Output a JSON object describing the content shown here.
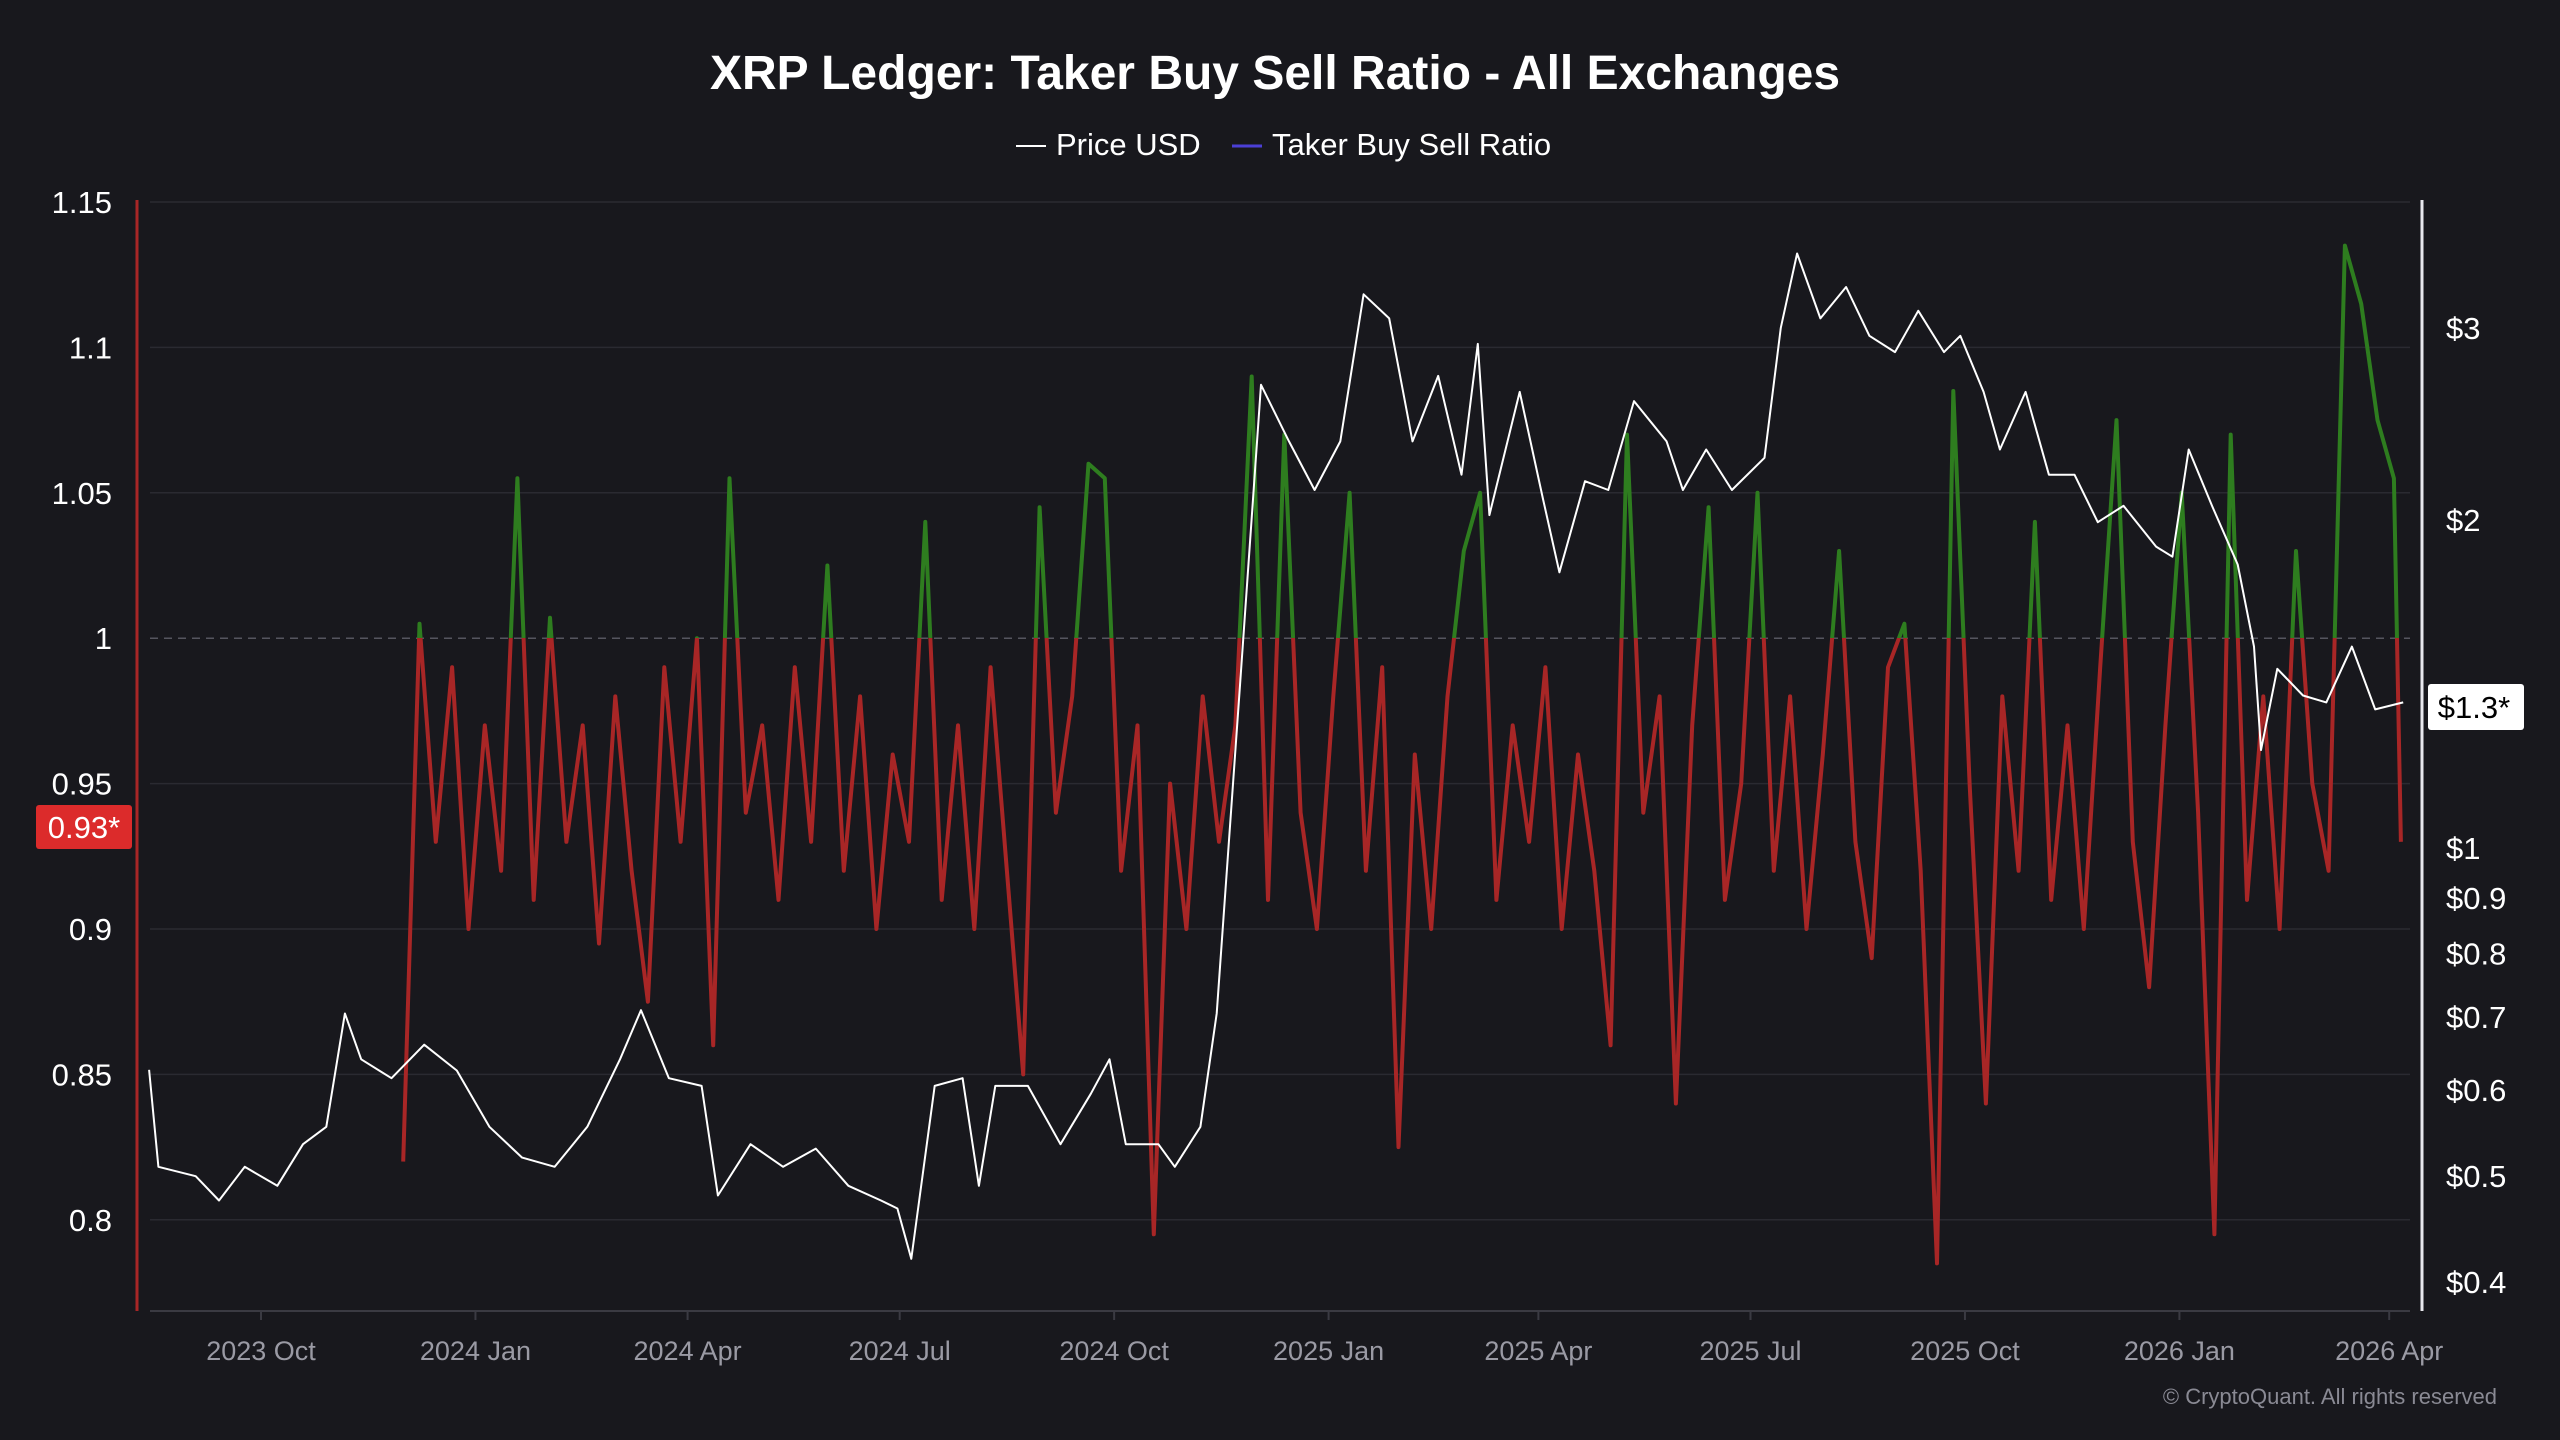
{
  "chart_data": {
    "type": "line",
    "title": "XRP Ledger: Taker Buy Sell Ratio - All Exchanges",
    "legend": [
      {
        "name": "Price USD",
        "color": "#ffffff"
      },
      {
        "name": "Taker Buy Sell Ratio",
        "color": "#4b3fd6"
      }
    ],
    "legend_placement": "top-center",
    "colors": {
      "above_1": "#2e7d1f",
      "below_1": "#a82626",
      "background": "#18181d",
      "price": "#ffffff"
    },
    "left_axis": {
      "ticks": [
        "1.15",
        "1.1",
        "1.05",
        "1",
        "0.95",
        "0.9",
        "0.85",
        "0.8"
      ],
      "tick_values": [
        1.15,
        1.1,
        1.05,
        1,
        0.95,
        0.9,
        0.85,
        0.8
      ],
      "range": [
        0.77,
        1.15
      ],
      "reference_line": 1,
      "current_label": "0.93*"
    },
    "right_axis": {
      "scale": "log",
      "ticks": [
        "$3",
        "$2",
        "$1",
        "$0.9",
        "$0.8",
        "$0.7",
        "$0.6",
        "$0.5",
        "$0.4"
      ],
      "tick_values": [
        3,
        2,
        1,
        0.9,
        0.8,
        0.7,
        0.6,
        0.5,
        0.4
      ],
      "current_label": "$1.3*"
    },
    "x_axis": {
      "ticks": [
        "2023 Oct",
        "2024 Jan",
        "2024 Apr",
        "2024 Jul",
        "2024 Oct",
        "2025 Jan",
        "2025 Apr",
        "2025 Jul",
        "2025 Oct",
        "2026 Jan",
        "2026 Apr"
      ],
      "tick_dates": [
        "2023-10-01",
        "2024-01-01",
        "2024-04-01",
        "2024-07-01",
        "2024-10-01",
        "2025-01-01",
        "2025-04-01",
        "2025-07-01",
        "2025-10-01",
        "2026-01-01",
        "2026-04-01"
      ],
      "range": [
        "2023-08-14",
        "2026-04-07"
      ]
    },
    "grid": true,
    "series": [
      {
        "name": "Price USD",
        "axis": "right",
        "points": [
          [
            "2023-08-14",
            0.626
          ],
          [
            "2023-08-18",
            0.51
          ],
          [
            "2023-09-03",
            0.5
          ],
          [
            "2023-09-13",
            0.475
          ],
          [
            "2023-09-24",
            0.51
          ],
          [
            "2023-10-08",
            0.49
          ],
          [
            "2023-10-19",
            0.535
          ],
          [
            "2023-10-29",
            0.555
          ],
          [
            "2023-11-06",
            0.705
          ],
          [
            "2023-11-13",
            0.64
          ],
          [
            "2023-11-26",
            0.615
          ],
          [
            "2023-12-10",
            0.66
          ],
          [
            "2023-12-24",
            0.625
          ],
          [
            "2024-01-07",
            0.555
          ],
          [
            "2024-01-21",
            0.52
          ],
          [
            "2024-02-04",
            0.51
          ],
          [
            "2024-02-18",
            0.555
          ],
          [
            "2024-03-03",
            0.64
          ],
          [
            "2024-03-12",
            0.71
          ],
          [
            "2024-03-24",
            0.615
          ],
          [
            "2024-04-07",
            0.605
          ],
          [
            "2024-04-14",
            0.48
          ],
          [
            "2024-04-28",
            0.535
          ],
          [
            "2024-05-12",
            0.51
          ],
          [
            "2024-05-26",
            0.53
          ],
          [
            "2024-06-09",
            0.49
          ],
          [
            "2024-06-23",
            0.475
          ],
          [
            "2024-06-30",
            0.467
          ],
          [
            "2024-07-06",
            0.42
          ],
          [
            "2024-07-16",
            0.605
          ],
          [
            "2024-07-28",
            0.615
          ],
          [
            "2024-08-04",
            0.49
          ],
          [
            "2024-08-11",
            0.605
          ],
          [
            "2024-08-25",
            0.605
          ],
          [
            "2024-09-08",
            0.535
          ],
          [
            "2024-09-21",
            0.595
          ],
          [
            "2024-09-29",
            0.64
          ],
          [
            "2024-10-06",
            0.535
          ],
          [
            "2024-10-20",
            0.535
          ],
          [
            "2024-10-27",
            0.51
          ],
          [
            "2024-11-07",
            0.555
          ],
          [
            "2024-11-14",
            0.705
          ],
          [
            "2024-11-24",
            1.41
          ],
          [
            "2024-12-03",
            2.66
          ],
          [
            "2024-12-15",
            2.36
          ],
          [
            "2024-12-26",
            2.13
          ],
          [
            "2025-01-06",
            2.36
          ],
          [
            "2025-01-16",
            3.22
          ],
          [
            "2025-01-27",
            3.06
          ],
          [
            "2025-02-06",
            2.36
          ],
          [
            "2025-02-17",
            2.71
          ],
          [
            "2025-02-27",
            2.2
          ],
          [
            "2025-03-06",
            2.9
          ],
          [
            "2025-03-11",
            2.02
          ],
          [
            "2025-03-24",
            2.62
          ],
          [
            "2025-04-03",
            2.09
          ],
          [
            "2025-04-10",
            1.79
          ],
          [
            "2025-04-21",
            2.17
          ],
          [
            "2025-05-01",
            2.13
          ],
          [
            "2025-05-12",
            2.57
          ],
          [
            "2025-05-26",
            2.36
          ],
          [
            "2025-06-02",
            2.13
          ],
          [
            "2025-06-12",
            2.32
          ],
          [
            "2025-06-23",
            2.13
          ],
          [
            "2025-07-07",
            2.28
          ],
          [
            "2025-07-14",
            3.0
          ],
          [
            "2025-07-21",
            3.51
          ],
          [
            "2025-07-31",
            3.06
          ],
          [
            "2025-08-11",
            3.27
          ],
          [
            "2025-08-21",
            2.95
          ],
          [
            "2025-09-01",
            2.85
          ],
          [
            "2025-09-11",
            3.11
          ],
          [
            "2025-09-22",
            2.85
          ],
          [
            "2025-09-29",
            2.95
          ],
          [
            "2025-10-09",
            2.62
          ],
          [
            "2025-10-16",
            2.32
          ],
          [
            "2025-10-27",
            2.62
          ],
          [
            "2025-11-06",
            2.2
          ],
          [
            "2025-11-17",
            2.2
          ],
          [
            "2025-11-27",
            1.99
          ],
          [
            "2025-12-08",
            2.06
          ],
          [
            "2025-12-22",
            1.89
          ],
          [
            "2025-12-29",
            1.85
          ],
          [
            "2026-01-05",
            2.32
          ],
          [
            "2026-01-15",
            2.06
          ],
          [
            "2026-01-26",
            1.82
          ],
          [
            "2026-02-02",
            1.53
          ],
          [
            "2026-02-05",
            1.23
          ],
          [
            "2026-02-12",
            1.46
          ],
          [
            "2026-02-23",
            1.38
          ],
          [
            "2026-03-05",
            1.36
          ],
          [
            "2026-03-16",
            1.53
          ],
          [
            "2026-03-26",
            1.34
          ],
          [
            "2026-04-07",
            1.36
          ]
        ]
      },
      {
        "name": "Taker Buy Sell Ratio",
        "axis": "left",
        "points": [
          [
            "2023-12-01",
            0.82
          ],
          [
            "2023-12-08",
            1.005
          ],
          [
            "2023-12-15",
            0.93
          ],
          [
            "2023-12-22",
            0.99
          ],
          [
            "2023-12-29",
            0.9
          ],
          [
            "2024-01-05",
            0.97
          ],
          [
            "2024-01-12",
            0.92
          ],
          [
            "2024-01-19",
            1.055
          ],
          [
            "2024-01-26",
            0.91
          ],
          [
            "2024-02-02",
            1.007
          ],
          [
            "2024-02-09",
            0.93
          ],
          [
            "2024-02-16",
            0.97
          ],
          [
            "2024-02-23",
            0.895
          ],
          [
            "2024-03-01",
            0.98
          ],
          [
            "2024-03-08",
            0.92
          ],
          [
            "2024-03-15",
            0.875
          ],
          [
            "2024-03-22",
            0.99
          ],
          [
            "2024-03-29",
            0.93
          ],
          [
            "2024-04-05",
            1.0
          ],
          [
            "2024-04-12",
            0.86
          ],
          [
            "2024-04-19",
            1.055
          ],
          [
            "2024-04-26",
            0.94
          ],
          [
            "2024-05-03",
            0.97
          ],
          [
            "2024-05-10",
            0.91
          ],
          [
            "2024-05-17",
            0.99
          ],
          [
            "2024-05-24",
            0.93
          ],
          [
            "2024-05-31",
            1.025
          ],
          [
            "2024-06-07",
            0.92
          ],
          [
            "2024-06-14",
            0.98
          ],
          [
            "2024-06-21",
            0.9
          ],
          [
            "2024-06-28",
            0.96
          ],
          [
            "2024-07-05",
            0.93
          ],
          [
            "2024-07-12",
            1.04
          ],
          [
            "2024-07-19",
            0.91
          ],
          [
            "2024-07-26",
            0.97
          ],
          [
            "2024-08-02",
            0.9
          ],
          [
            "2024-08-09",
            0.99
          ],
          [
            "2024-08-16",
            0.92
          ],
          [
            "2024-08-23",
            0.85
          ],
          [
            "2024-08-30",
            1.045
          ],
          [
            "2024-09-06",
            0.94
          ],
          [
            "2024-09-13",
            0.98
          ],
          [
            "2024-09-20",
            1.06
          ],
          [
            "2024-09-27",
            1.055
          ],
          [
            "2024-10-04",
            0.92
          ],
          [
            "2024-10-11",
            0.97
          ],
          [
            "2024-10-18",
            0.795
          ],
          [
            "2024-10-25",
            0.95
          ],
          [
            "2024-11-01",
            0.9
          ],
          [
            "2024-11-08",
            0.98
          ],
          [
            "2024-11-15",
            0.93
          ],
          [
            "2024-11-22",
            0.97
          ],
          [
            "2024-11-29",
            1.09
          ],
          [
            "2024-12-06",
            0.91
          ],
          [
            "2024-12-13",
            1.07
          ],
          [
            "2024-12-20",
            0.94
          ],
          [
            "2024-12-27",
            0.9
          ],
          [
            "2025-01-03",
            0.98
          ],
          [
            "2025-01-10",
            1.05
          ],
          [
            "2025-01-17",
            0.92
          ],
          [
            "2025-01-24",
            0.99
          ],
          [
            "2025-01-31",
            0.825
          ],
          [
            "2025-02-07",
            0.96
          ],
          [
            "2025-02-14",
            0.9
          ],
          [
            "2025-02-21",
            0.98
          ],
          [
            "2025-02-28",
            1.03
          ],
          [
            "2025-03-07",
            1.05
          ],
          [
            "2025-03-14",
            0.91
          ],
          [
            "2025-03-21",
            0.97
          ],
          [
            "2025-03-28",
            0.93
          ],
          [
            "2025-04-04",
            0.99
          ],
          [
            "2025-04-11",
            0.9
          ],
          [
            "2025-04-18",
            0.96
          ],
          [
            "2025-04-25",
            0.92
          ],
          [
            "2025-05-02",
            0.86
          ],
          [
            "2025-05-09",
            1.07
          ],
          [
            "2025-05-16",
            0.94
          ],
          [
            "2025-05-23",
            0.98
          ],
          [
            "2025-05-30",
            0.84
          ],
          [
            "2025-06-06",
            0.97
          ],
          [
            "2025-06-13",
            1.045
          ],
          [
            "2025-06-20",
            0.91
          ],
          [
            "2025-06-27",
            0.95
          ],
          [
            "2025-07-04",
            1.05
          ],
          [
            "2025-07-11",
            0.92
          ],
          [
            "2025-07-18",
            0.98
          ],
          [
            "2025-07-25",
            0.9
          ],
          [
            "2025-08-01",
            0.96
          ],
          [
            "2025-08-08",
            1.03
          ],
          [
            "2025-08-15",
            0.93
          ],
          [
            "2025-08-22",
            0.89
          ],
          [
            "2025-08-29",
            0.99
          ],
          [
            "2025-09-05",
            1.005
          ],
          [
            "2025-09-12",
            0.92
          ],
          [
            "2025-09-19",
            0.785
          ],
          [
            "2025-09-26",
            1.085
          ],
          [
            "2025-10-03",
            0.95
          ],
          [
            "2025-10-10",
            0.84
          ],
          [
            "2025-10-17",
            0.98
          ],
          [
            "2025-10-24",
            0.92
          ],
          [
            "2025-10-31",
            1.04
          ],
          [
            "2025-11-07",
            0.91
          ],
          [
            "2025-11-14",
            0.97
          ],
          [
            "2025-11-21",
            0.9
          ],
          [
            "2025-11-28",
            0.99
          ],
          [
            "2025-12-05",
            1.075
          ],
          [
            "2025-12-12",
            0.93
          ],
          [
            "2025-12-19",
            0.88
          ],
          [
            "2025-12-26",
            0.97
          ],
          [
            "2026-01-02",
            1.05
          ],
          [
            "2026-01-09",
            0.94
          ],
          [
            "2026-01-16",
            0.795
          ],
          [
            "2026-01-23",
            1.07
          ],
          [
            "2026-01-30",
            0.91
          ],
          [
            "2026-02-06",
            0.98
          ],
          [
            "2026-02-13",
            0.9
          ],
          [
            "2026-02-20",
            1.03
          ],
          [
            "2026-02-27",
            0.95
          ],
          [
            "2026-03-06",
            0.92
          ],
          [
            "2026-03-13",
            1.135
          ],
          [
            "2026-03-20",
            1.115
          ],
          [
            "2026-03-27",
            1.075
          ],
          [
            "2026-04-03",
            1.055
          ],
          [
            "2026-04-06",
            0.93
          ]
        ]
      }
    ]
  },
  "footer": {
    "copyright": "© CryptoQuant. All rights reserved"
  }
}
